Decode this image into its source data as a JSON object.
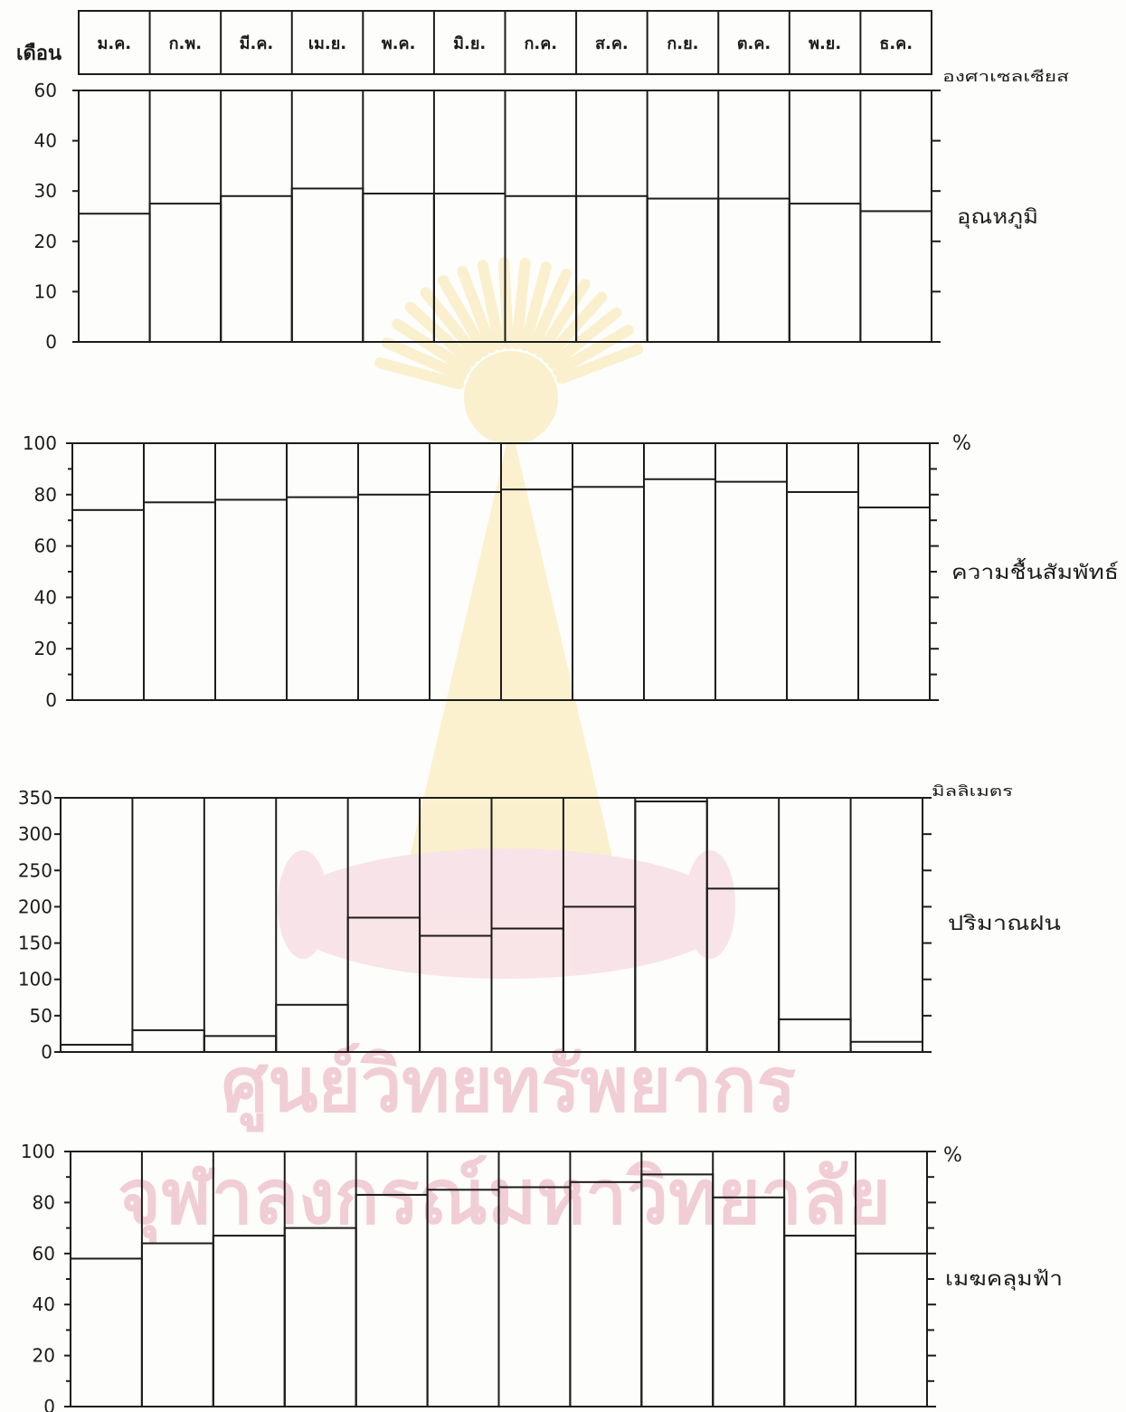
{
  "chart_data": {
    "type": "bar",
    "xlabel": "เดือน",
    "categories": [
      "ม.ค.",
      "ก.พ.",
      "มี.ค.",
      "เม.ย.",
      "พ.ค.",
      "มิ.ย.",
      "ก.ค.",
      "ส.ค.",
      "ก.ย.",
      "ต.ค.",
      "พ.ย.",
      "ธ.ค."
    ],
    "series": [
      {
        "name": "อุณหภูมิ",
        "unit": "องศาเซลเซียส",
        "yticks": [
          0,
          10,
          20,
          30,
          40,
          60
        ],
        "ylim": [
          0,
          60
        ],
        "values": [
          25.5,
          27.5,
          29,
          30.5,
          29.5,
          29.5,
          29,
          29,
          28.5,
          28.5,
          27.5,
          26
        ]
      },
      {
        "name": "ความชื้นสัมพัทธ์",
        "unit": "%",
        "yticks": [
          0,
          20,
          40,
          60,
          80,
          100
        ],
        "ylim": [
          0,
          100
        ],
        "values": [
          74,
          77,
          78,
          79,
          80,
          81,
          82,
          83,
          86,
          85,
          81,
          75
        ]
      },
      {
        "name": "ปริมาณฝน",
        "unit": "มิลลิเมตร",
        "yticks": [
          0,
          50,
          100,
          150,
          200,
          250,
          300,
          350
        ],
        "ylim": [
          0,
          350
        ],
        "values": [
          10,
          30,
          22,
          65,
          185,
          160,
          170,
          200,
          345,
          225,
          45,
          14
        ]
      },
      {
        "name": "เมฆคลุมฟ้า",
        "unit": "%",
        "yticks": [
          0,
          20,
          40,
          60,
          80,
          100
        ],
        "ylim": [
          0,
          100
        ],
        "values": [
          58,
          64,
          67,
          70,
          83,
          85,
          86,
          88,
          91,
          82,
          67,
          60
        ]
      }
    ],
    "grid": false,
    "legend": "none"
  },
  "watermark": {
    "line1": "ศูนย์วิทยทรัพยากร",
    "line2": "จุฬาลงกรณ์มหาวิทยาลัย",
    "text_color": "#f1cdd6",
    "emblem_yellow": "#f9ecbf",
    "emblem_pink": "#f7dbe2"
  },
  "colors": {
    "line": "#1c1c1c",
    "background": "#fdfdfb"
  }
}
